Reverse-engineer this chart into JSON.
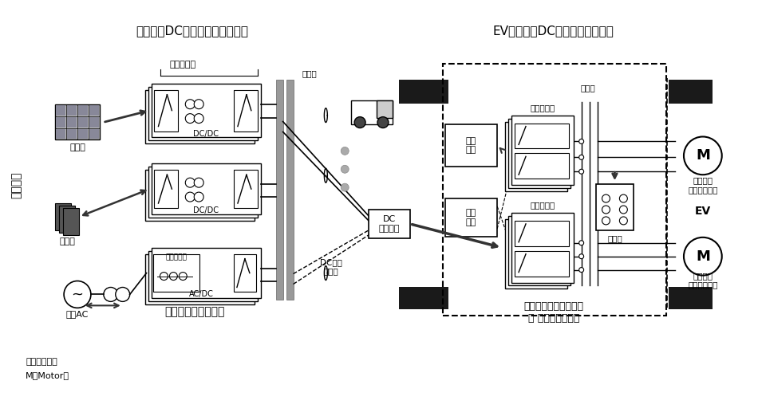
{
  "title_left": "地上側：DC発電・蓄電システム",
  "title_right": "EV車上側：DC急速充電システム",
  "left_label": "回路構成",
  "left_box_label": "発電・蓄電システム",
  "right_box_label": "車載急速充電システム\n兼 駆動インバータ",
  "note1": "注：略語説明",
  "note2": "M（Motor）",
  "inverter_label": "インバータ",
  "dcline_label": "直流線",
  "dcdc_label1": "DC/DC",
  "dcdc_label2": "DC/DC",
  "reactor_label": "リアクトル",
  "acdc_label": "AC/DC",
  "solar_label": "太陽光",
  "battery_label": "蓄電池",
  "ac_label": "商用AC",
  "dc_connector_label": "DC\nコネクタ",
  "dc_charge_label": "DC充電\nポート",
  "car_battery_label": "車載\n電池",
  "control_label": "制御\n装置",
  "inverter_label2": "インバータ",
  "inverter_label3": "インバータ",
  "transformer_label": "変圧器",
  "switch_label": "切替器",
  "EV_label": "EV",
  "motor1_label": "モータ・\nジェネレータ",
  "motor2_label": "モータ・\nジェネレータ",
  "bg_color": "#ffffff",
  "gray_bg": "#d8d8d8",
  "dark_block": "#1a1a1a",
  "line_color": "#222222",
  "mid_gray": "#888888",
  "bus_color": "#999999"
}
